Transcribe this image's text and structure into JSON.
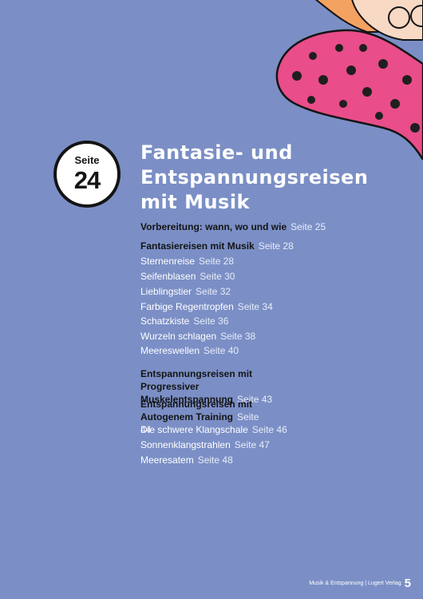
{
  "badge": {
    "label": "Seite",
    "number": "24"
  },
  "title_lines": [
    "Fantasie- und",
    "Entspannungsreisen",
    "mit Musik"
  ],
  "toc": [
    {
      "text": "Vorbereitung: wann, wo und wie",
      "page": "Seite 25"
    },
    {
      "text": "Fantasiereisen mit Musik",
      "page": "Seite 28"
    },
    {
      "text": "Sternenreise",
      "page": "Seite 28"
    },
    {
      "text": "Seifenblasen",
      "page": "Seite 30"
    },
    {
      "text": "Lieblingstier",
      "page": "Seite 32"
    },
    {
      "text": "Farbige Regentropfen",
      "page": "Seite 34"
    },
    {
      "text": "Schatzkiste",
      "page": "Seite 36"
    },
    {
      "text": "Wurzeln schlagen",
      "page": "Seite 38"
    },
    {
      "text": "Meereswellen",
      "page": "Seite 40"
    },
    {
      "text": "Entspannungsreisen mit Progressiver Muskelentspannung",
      "page": "Seite 43"
    },
    {
      "text": "Entspannungsreisen mit Autogenem Training",
      "page": "Seite 44"
    },
    {
      "text": "Die schwere Klangschale",
      "page": "Seite 46"
    },
    {
      "text": "Sonnenklangstrahlen",
      "page": "Seite 47"
    },
    {
      "text": "Meeresatem",
      "page": "Seite 48"
    }
  ],
  "footer": {
    "text": "Musik & Entspannung | Lugert Verlag",
    "page_number": "5"
  }
}
